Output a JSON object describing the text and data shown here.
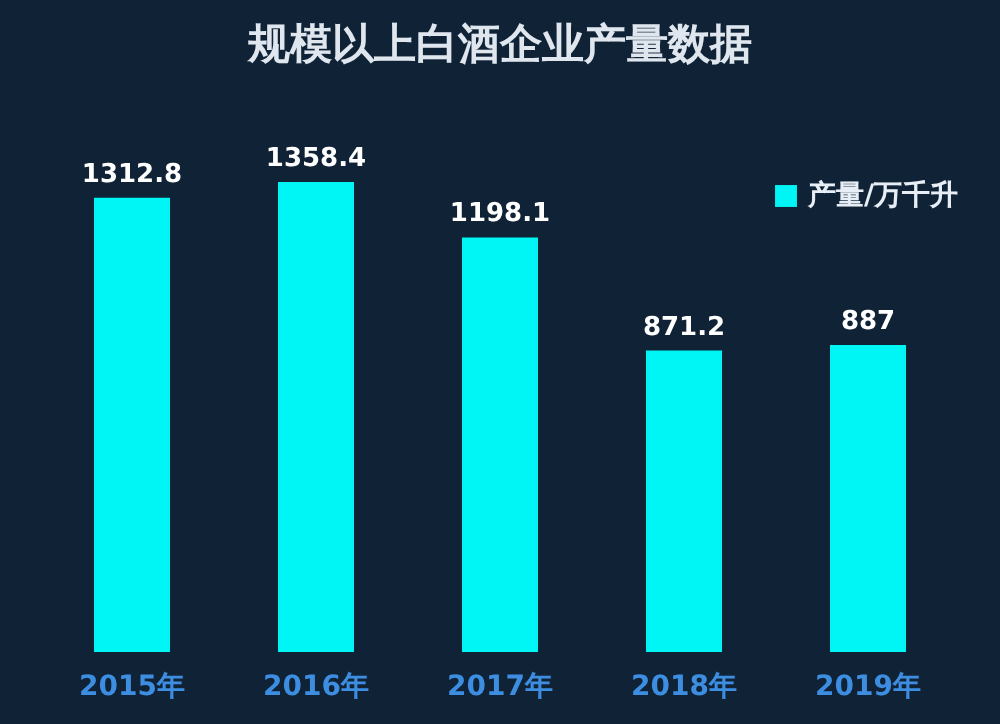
{
  "chart_data": {
    "type": "bar",
    "title": "规模以上白酒企业产量数据",
    "categories": [
      "2015年",
      "2016年",
      "2017年",
      "2018年",
      "2019年"
    ],
    "series": [
      {
        "name": "产量/万千升",
        "color": "#00f5f5",
        "values": [
          1312.8,
          1358.4,
          1198.1,
          871.2,
          887
        ]
      }
    ],
    "data_labels": true,
    "tick_labels": "x",
    "grid": false,
    "legend": "top right"
  }
}
